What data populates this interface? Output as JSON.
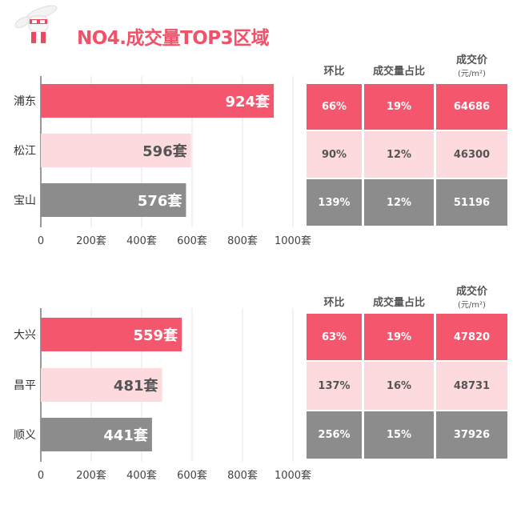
{
  "header": {
    "title": "NO4.成交量TOP3区域"
  },
  "colors": {
    "red": "#f4566e",
    "pink": "#fcdadd",
    "gray": "#8c8c8c",
    "title": "#f25269"
  },
  "table_headers": [
    "环比",
    "成交量占比",
    "成交价",
    "(元/m²)"
  ],
  "chart_data": [
    {
      "type": "bar",
      "orientation": "horizontal",
      "categories": [
        "浦东",
        "松江",
        "宝山"
      ],
      "values": [
        924,
        596,
        576
      ],
      "value_labels": [
        "924套",
        "596套",
        "576套"
      ],
      "xticks": [
        "0",
        "200套",
        "400套",
        "600套",
        "800套",
        "1000套"
      ],
      "xlim": [
        0,
        1000
      ],
      "table": [
        [
          "66%",
          "19%",
          "64686"
        ],
        [
          "90%",
          "12%",
          "46300"
        ],
        [
          "139%",
          "12%",
          "51196"
        ]
      ]
    },
    {
      "type": "bar",
      "orientation": "horizontal",
      "categories": [
        "大兴",
        "昌平",
        "顺义"
      ],
      "values": [
        559,
        481,
        441
      ],
      "value_labels": [
        "559套",
        "481套",
        "441套"
      ],
      "xticks": [
        "0",
        "200套",
        "400套",
        "600套",
        "800套",
        "1000套"
      ],
      "xlim": [
        0,
        1000
      ],
      "table": [
        [
          "63%",
          "19%",
          "47820"
        ],
        [
          "137%",
          "16%",
          "48731"
        ],
        [
          "256%",
          "15%",
          "37926"
        ]
      ]
    }
  ]
}
